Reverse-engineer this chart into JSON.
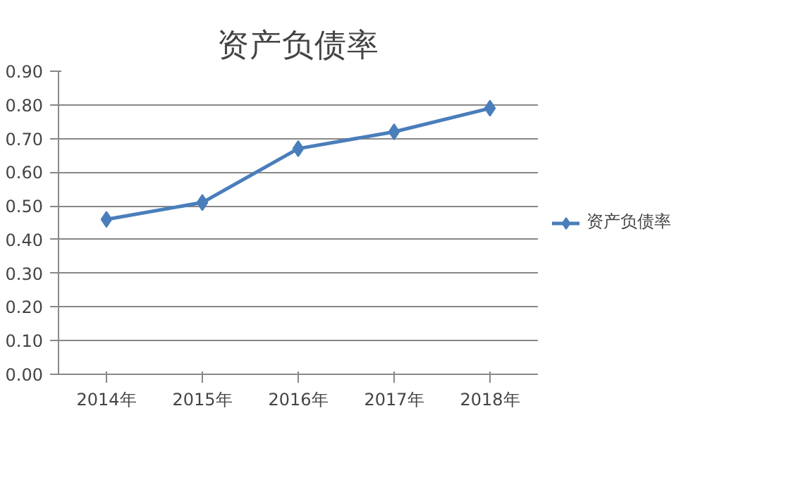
{
  "chart_data": {
    "type": "line",
    "title": "资产负债率",
    "categories": [
      "2014年",
      "2015年",
      "2016年",
      "2017年",
      "2018年"
    ],
    "series": [
      {
        "name": "资产负债率",
        "color": "#4a7ebb",
        "values": [
          0.46,
          0.51,
          0.67,
          0.72,
          0.79
        ]
      }
    ],
    "ylim": [
      0,
      0.9
    ],
    "yticks": [
      {
        "value": 0,
        "label": "0.00"
      },
      {
        "value": 0.1,
        "label": "0.10"
      },
      {
        "value": 0.2,
        "label": "0.20"
      },
      {
        "value": 0.3,
        "label": "0.30"
      },
      {
        "value": 0.4,
        "label": "0.40"
      },
      {
        "value": 0.5,
        "label": "0.50"
      },
      {
        "value": 0.6,
        "label": "0.60"
      },
      {
        "value": 0.7,
        "label": "0.70"
      },
      {
        "value": 0.8,
        "label": "0.80"
      },
      {
        "value": 0.9,
        "label": "0.90"
      }
    ],
    "grid": "y",
    "legend": "right",
    "marker": "diamond",
    "line_style": "solid"
  }
}
